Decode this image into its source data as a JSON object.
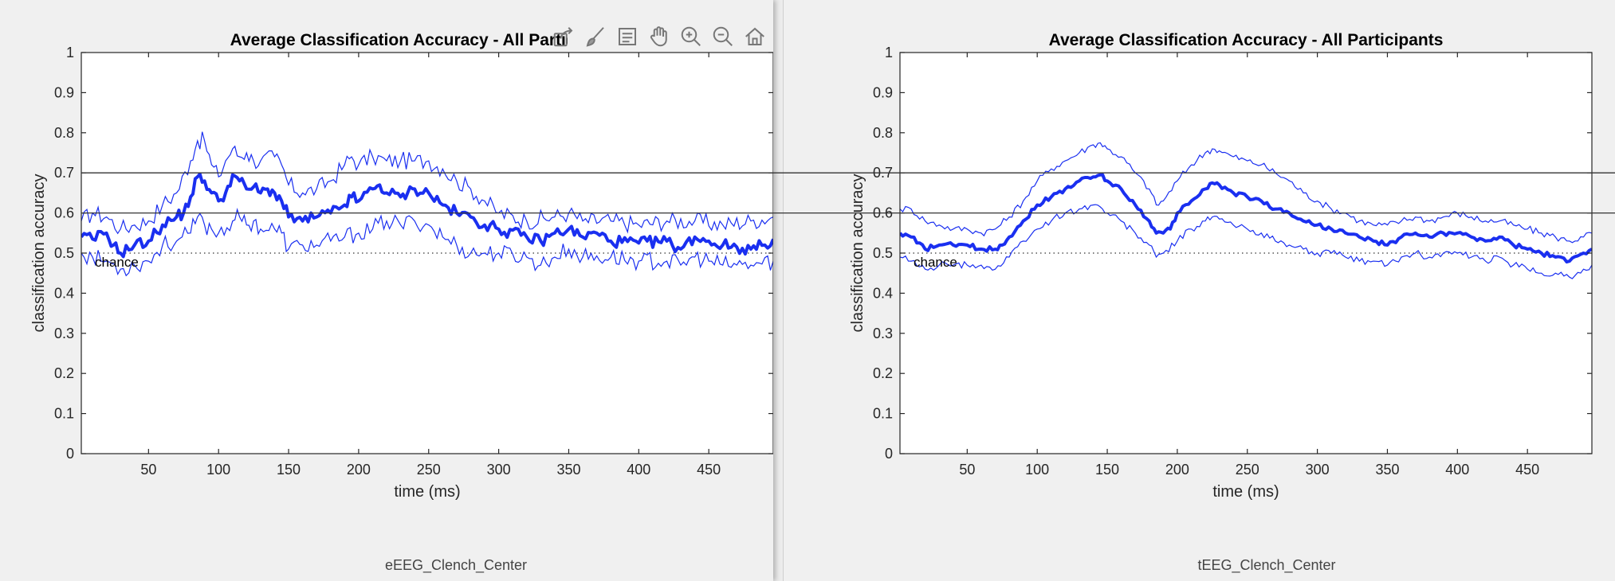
{
  "window_left": {
    "caption": "eEEG_Clench_Center",
    "toolbar": {
      "icons": [
        "export-icon",
        "brush-icon",
        "legend-icon",
        "pan-icon",
        "zoom-in-icon",
        "zoom-out-icon",
        "home-icon"
      ]
    }
  },
  "window_right": {
    "caption": "tEEG_Clench_Center"
  },
  "chart_data": [
    {
      "type": "line",
      "title": "Average Classification Accuracy - All Participants",
      "xlabel": "time (ms)",
      "ylabel": "classification accuracy",
      "xlim": [
        2,
        496
      ],
      "ylim": [
        0,
        1
      ],
      "xticks": [
        50,
        100,
        150,
        200,
        250,
        300,
        350,
        400,
        450
      ],
      "yticks": [
        0,
        0.1,
        0.2,
        0.3,
        0.4,
        0.5,
        0.6,
        0.7,
        0.8,
        0.9,
        1
      ],
      "reference_lines": [
        0.6,
        0.7
      ],
      "chance_level": 0.5,
      "chance_label": "chance",
      "color": "#1a2ff0",
      "mean_points": [
        [
          2,
          0.54
        ],
        [
          10,
          0.535
        ],
        [
          20,
          0.55
        ],
        [
          25,
          0.52
        ],
        [
          30,
          0.5
        ],
        [
          40,
          0.52
        ],
        [
          50,
          0.53
        ],
        [
          60,
          0.57
        ],
        [
          70,
          0.59
        ],
        [
          75,
          0.6
        ],
        [
          80,
          0.64
        ],
        [
          85,
          0.69
        ],
        [
          90,
          0.68
        ],
        [
          95,
          0.65
        ],
        [
          100,
          0.63
        ],
        [
          105,
          0.65
        ],
        [
          110,
          0.695
        ],
        [
          115,
          0.68
        ],
        [
          120,
          0.66
        ],
        [
          125,
          0.665
        ],
        [
          130,
          0.65
        ],
        [
          135,
          0.66
        ],
        [
          140,
          0.65
        ],
        [
          145,
          0.63
        ],
        [
          150,
          0.59
        ],
        [
          160,
          0.58
        ],
        [
          170,
          0.59
        ],
        [
          180,
          0.6
        ],
        [
          190,
          0.62
        ],
        [
          195,
          0.64
        ],
        [
          200,
          0.63
        ],
        [
          210,
          0.66
        ],
        [
          215,
          0.67
        ],
        [
          220,
          0.65
        ],
        [
          230,
          0.64
        ],
        [
          235,
          0.65
        ],
        [
          240,
          0.66
        ],
        [
          250,
          0.65
        ],
        [
          260,
          0.62
        ],
        [
          270,
          0.6
        ],
        [
          280,
          0.59
        ],
        [
          290,
          0.57
        ],
        [
          300,
          0.56
        ],
        [
          320,
          0.54
        ],
        [
          330,
          0.53
        ],
        [
          340,
          0.55
        ],
        [
          350,
          0.56
        ],
        [
          360,
          0.54
        ],
        [
          370,
          0.55
        ],
        [
          380,
          0.53
        ],
        [
          400,
          0.525
        ],
        [
          420,
          0.53
        ],
        [
          430,
          0.51
        ],
        [
          440,
          0.54
        ],
        [
          450,
          0.53
        ],
        [
          460,
          0.52
        ],
        [
          470,
          0.515
        ],
        [
          480,
          0.51
        ],
        [
          490,
          0.52
        ],
        [
          496,
          0.535
        ]
      ],
      "upper_points": [
        [
          2,
          0.58
        ],
        [
          10,
          0.6
        ],
        [
          20,
          0.59
        ],
        [
          30,
          0.56
        ],
        [
          40,
          0.57
        ],
        [
          50,
          0.58
        ],
        [
          60,
          0.62
        ],
        [
          70,
          0.65
        ],
        [
          80,
          0.73
        ],
        [
          85,
          0.78
        ],
        [
          90,
          0.78
        ],
        [
          95,
          0.72
        ],
        [
          100,
          0.69
        ],
        [
          105,
          0.73
        ],
        [
          110,
          0.76
        ],
        [
          115,
          0.74
        ],
        [
          120,
          0.75
        ],
        [
          125,
          0.73
        ],
        [
          130,
          0.73
        ],
        [
          140,
          0.74
        ],
        [
          145,
          0.72
        ],
        [
          150,
          0.67
        ],
        [
          160,
          0.65
        ],
        [
          170,
          0.66
        ],
        [
          180,
          0.68
        ],
        [
          190,
          0.72
        ],
        [
          195,
          0.74
        ],
        [
          200,
          0.72
        ],
        [
          210,
          0.74
        ],
        [
          220,
          0.73
        ],
        [
          230,
          0.73
        ],
        [
          240,
          0.73
        ],
        [
          250,
          0.73
        ],
        [
          260,
          0.71
        ],
        [
          270,
          0.68
        ],
        [
          280,
          0.66
        ],
        [
          290,
          0.63
        ],
        [
          300,
          0.6
        ],
        [
          320,
          0.58
        ],
        [
          340,
          0.59
        ],
        [
          350,
          0.6
        ],
        [
          360,
          0.58
        ],
        [
          380,
          0.58
        ],
        [
          400,
          0.57
        ],
        [
          420,
          0.58
        ],
        [
          440,
          0.58
        ],
        [
          460,
          0.57
        ],
        [
          480,
          0.58
        ],
        [
          496,
          0.59
        ]
      ],
      "lower_points": [
        [
          2,
          0.5
        ],
        [
          10,
          0.49
        ],
        [
          20,
          0.48
        ],
        [
          30,
          0.46
        ],
        [
          40,
          0.47
        ],
        [
          50,
          0.48
        ],
        [
          60,
          0.52
        ],
        [
          70,
          0.53
        ],
        [
          80,
          0.55
        ],
        [
          85,
          0.59
        ],
        [
          90,
          0.57
        ],
        [
          95,
          0.56
        ],
        [
          100,
          0.55
        ],
        [
          110,
          0.58
        ],
        [
          115,
          0.59
        ],
        [
          120,
          0.57
        ],
        [
          125,
          0.58
        ],
        [
          130,
          0.56
        ],
        [
          140,
          0.56
        ],
        [
          145,
          0.55
        ],
        [
          150,
          0.51
        ],
        [
          160,
          0.52
        ],
        [
          170,
          0.52
        ],
        [
          180,
          0.53
        ],
        [
          190,
          0.54
        ],
        [
          200,
          0.55
        ],
        [
          210,
          0.56
        ],
        [
          220,
          0.58
        ],
        [
          230,
          0.57
        ],
        [
          240,
          0.58
        ],
        [
          250,
          0.57
        ],
        [
          260,
          0.54
        ],
        [
          270,
          0.52
        ],
        [
          280,
          0.5
        ],
        [
          290,
          0.5
        ],
        [
          300,
          0.5
        ],
        [
          320,
          0.49
        ],
        [
          330,
          0.47
        ],
        [
          340,
          0.49
        ],
        [
          350,
          0.51
        ],
        [
          360,
          0.49
        ],
        [
          380,
          0.49
        ],
        [
          400,
          0.48
        ],
        [
          420,
          0.48
        ],
        [
          430,
          0.47
        ],
        [
          440,
          0.49
        ],
        [
          450,
          0.48
        ],
        [
          460,
          0.47
        ],
        [
          470,
          0.47
        ],
        [
          480,
          0.47
        ],
        [
          496,
          0.48
        ]
      ]
    },
    {
      "type": "line",
      "title": "Average Classification Accuracy - All Participants",
      "xlabel": "time (ms)",
      "ylabel": "classification accuracy",
      "xlim": [
        2,
        496
      ],
      "ylim": [
        0,
        1
      ],
      "xticks": [
        50,
        100,
        150,
        200,
        250,
        300,
        350,
        400,
        450
      ],
      "yticks": [
        0,
        0.1,
        0.2,
        0.3,
        0.4,
        0.5,
        0.6,
        0.7,
        0.8,
        0.9,
        1
      ],
      "reference_lines": [
        0.6,
        0.7
      ],
      "chance_level": 0.5,
      "chance_label": "chance",
      "color": "#1a2ff0",
      "mean_points": [
        [
          2,
          0.55
        ],
        [
          10,
          0.54
        ],
        [
          20,
          0.51
        ],
        [
          30,
          0.52
        ],
        [
          40,
          0.52
        ],
        [
          50,
          0.52
        ],
        [
          60,
          0.51
        ],
        [
          70,
          0.51
        ],
        [
          75,
          0.52
        ],
        [
          80,
          0.54
        ],
        [
          90,
          0.58
        ],
        [
          100,
          0.62
        ],
        [
          110,
          0.64
        ],
        [
          120,
          0.66
        ],
        [
          130,
          0.68
        ],
        [
          140,
          0.69
        ],
        [
          145,
          0.695
        ],
        [
          150,
          0.68
        ],
        [
          160,
          0.66
        ],
        [
          170,
          0.62
        ],
        [
          180,
          0.58
        ],
        [
          185,
          0.55
        ],
        [
          190,
          0.55
        ],
        [
          195,
          0.56
        ],
        [
          200,
          0.6
        ],
        [
          210,
          0.63
        ],
        [
          220,
          0.66
        ],
        [
          225,
          0.675
        ],
        [
          230,
          0.67
        ],
        [
          240,
          0.65
        ],
        [
          250,
          0.64
        ],
        [
          260,
          0.63
        ],
        [
          270,
          0.61
        ],
        [
          280,
          0.6
        ],
        [
          290,
          0.58
        ],
        [
          300,
          0.57
        ],
        [
          310,
          0.56
        ],
        [
          320,
          0.55
        ],
        [
          330,
          0.54
        ],
        [
          340,
          0.53
        ],
        [
          350,
          0.52
        ],
        [
          360,
          0.54
        ],
        [
          370,
          0.55
        ],
        [
          380,
          0.54
        ],
        [
          390,
          0.55
        ],
        [
          400,
          0.55
        ],
        [
          410,
          0.54
        ],
        [
          420,
          0.53
        ],
        [
          430,
          0.54
        ],
        [
          440,
          0.52
        ],
        [
          450,
          0.51
        ],
        [
          460,
          0.5
        ],
        [
          470,
          0.49
        ],
        [
          480,
          0.48
        ],
        [
          490,
          0.5
        ],
        [
          496,
          0.51
        ]
      ],
      "upper_points": [
        [
          2,
          0.61
        ],
        [
          10,
          0.61
        ],
        [
          20,
          0.58
        ],
        [
          30,
          0.57
        ],
        [
          40,
          0.56
        ],
        [
          50,
          0.56
        ],
        [
          60,
          0.55
        ],
        [
          70,
          0.56
        ],
        [
          80,
          0.59
        ],
        [
          90,
          0.63
        ],
        [
          100,
          0.68
        ],
        [
          110,
          0.71
        ],
        [
          120,
          0.73
        ],
        [
          130,
          0.75
        ],
        [
          140,
          0.77
        ],
        [
          145,
          0.775
        ],
        [
          150,
          0.76
        ],
        [
          160,
          0.74
        ],
        [
          170,
          0.7
        ],
        [
          180,
          0.66
        ],
        [
          185,
          0.62
        ],
        [
          190,
          0.63
        ],
        [
          200,
          0.68
        ],
        [
          210,
          0.72
        ],
        [
          220,
          0.75
        ],
        [
          225,
          0.76
        ],
        [
          230,
          0.755
        ],
        [
          240,
          0.74
        ],
        [
          250,
          0.73
        ],
        [
          260,
          0.72
        ],
        [
          270,
          0.7
        ],
        [
          280,
          0.68
        ],
        [
          290,
          0.65
        ],
        [
          300,
          0.63
        ],
        [
          310,
          0.61
        ],
        [
          320,
          0.6
        ],
        [
          330,
          0.58
        ],
        [
          340,
          0.57
        ],
        [
          350,
          0.57
        ],
        [
          360,
          0.58
        ],
        [
          370,
          0.59
        ],
        [
          380,
          0.58
        ],
        [
          390,
          0.59
        ],
        [
          400,
          0.6
        ],
        [
          410,
          0.59
        ],
        [
          420,
          0.58
        ],
        [
          430,
          0.58
        ],
        [
          440,
          0.57
        ],
        [
          450,
          0.56
        ],
        [
          460,
          0.55
        ],
        [
          470,
          0.54
        ],
        [
          480,
          0.53
        ],
        [
          490,
          0.54
        ],
        [
          496,
          0.55
        ]
      ],
      "lower_points": [
        [
          2,
          0.49
        ],
        [
          10,
          0.48
        ],
        [
          20,
          0.46
        ],
        [
          30,
          0.47
        ],
        [
          40,
          0.47
        ],
        [
          50,
          0.47
        ],
        [
          60,
          0.47
        ],
        [
          70,
          0.46
        ],
        [
          80,
          0.49
        ],
        [
          90,
          0.53
        ],
        [
          100,
          0.56
        ],
        [
          110,
          0.58
        ],
        [
          120,
          0.6
        ],
        [
          130,
          0.61
        ],
        [
          140,
          0.62
        ],
        [
          145,
          0.615
        ],
        [
          150,
          0.6
        ],
        [
          160,
          0.58
        ],
        [
          170,
          0.55
        ],
        [
          180,
          0.52
        ],
        [
          185,
          0.49
        ],
        [
          190,
          0.5
        ],
        [
          200,
          0.53
        ],
        [
          210,
          0.56
        ],
        [
          220,
          0.58
        ],
        [
          225,
          0.59
        ],
        [
          230,
          0.585
        ],
        [
          240,
          0.57
        ],
        [
          250,
          0.56
        ],
        [
          260,
          0.55
        ],
        [
          270,
          0.53
        ],
        [
          280,
          0.52
        ],
        [
          290,
          0.51
        ],
        [
          300,
          0.5
        ],
        [
          310,
          0.5
        ],
        [
          320,
          0.49
        ],
        [
          330,
          0.48
        ],
        [
          340,
          0.48
        ],
        [
          350,
          0.47
        ],
        [
          360,
          0.49
        ],
        [
          370,
          0.5
        ],
        [
          380,
          0.49
        ],
        [
          390,
          0.5
        ],
        [
          400,
          0.5
        ],
        [
          410,
          0.49
        ],
        [
          420,
          0.48
        ],
        [
          430,
          0.49
        ],
        [
          440,
          0.47
        ],
        [
          450,
          0.46
        ],
        [
          460,
          0.45
        ],
        [
          470,
          0.45
        ],
        [
          480,
          0.44
        ],
        [
          490,
          0.46
        ],
        [
          496,
          0.47
        ]
      ]
    }
  ]
}
